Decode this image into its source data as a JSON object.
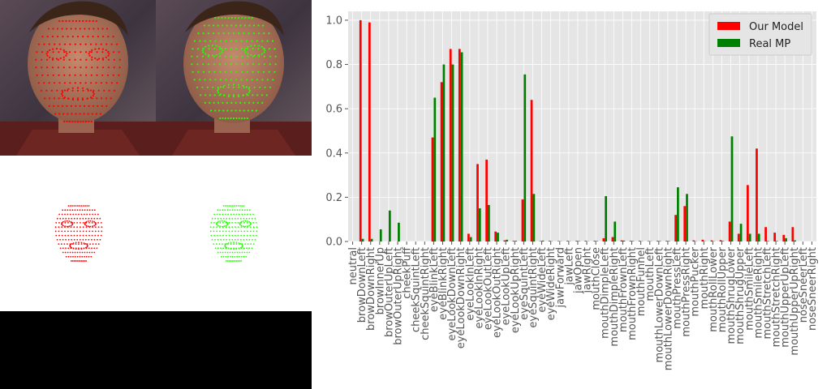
{
  "colors": {
    "our_model": "#ff0000",
    "real_mp": "#008000",
    "plot_background": "#e5e5e5",
    "grid": "#ffffff",
    "tick_text": "#555555"
  },
  "images": {
    "left_photo": "face-photo-with-red-landmarks",
    "right_photo": "face-photo-with-green-landmarks",
    "left_mesh": "red-landmark-mesh",
    "right_mesh": "green-landmark-mesh"
  },
  "chart_data": {
    "type": "bar",
    "title": "",
    "xlabel": "",
    "ylabel": "",
    "ylim": [
      0,
      1.04
    ],
    "yticks": [
      "0.0",
      "0.2",
      "0.4",
      "0.6",
      "0.8",
      "1.0"
    ],
    "grid": true,
    "legend_position": "top-right",
    "categories": [
      "neutral",
      "browDownLeft",
      "browDownRight",
      "browInnerUp",
      "browOuterUpLeft",
      "browOuterUpRight",
      "cheekPuff",
      "cheekSquintLeft",
      "cheekSquintRight",
      "eyeBlinkLeft",
      "eyeBlinkRight",
      "eyeLookDownLeft",
      "eyeLookDownRight",
      "eyeLookInLeft",
      "eyeLookInRight",
      "eyeLookOutLeft",
      "eyeLookOutRight",
      "eyeLookUpLeft",
      "eyeLookUpRight",
      "eyeSquintLeft",
      "eyeSquintRight",
      "eyeWideLeft",
      "eyeWideRight",
      "jawForward",
      "jawLeft",
      "jawOpen",
      "jawRight",
      "mouthClose",
      "mouthDimpleLeft",
      "mouthDimpleRight",
      "mouthFrownLeft",
      "mouthFrownRight",
      "mouthFunnel",
      "mouthLeft",
      "mouthLowerDownLeft",
      "mouthLowerDownRight",
      "mouthPressLeft",
      "mouthPressRight",
      "mouthPucker",
      "mouthRight",
      "mouthRollLower",
      "mouthRollUpper",
      "mouthShrugLower",
      "mouthShrugUpper",
      "mouthSmileLeft",
      "mouthSmileRight",
      "mouthStretchLeft",
      "mouthStretchRight",
      "mouthUpperUpLeft",
      "mouthUpperUpRight",
      "noseSneerLeft",
      "noseSneerRight"
    ],
    "series": [
      {
        "name": "Our Model",
        "values": [
          0.0,
          1.0,
          0.99,
          0.0,
          0.0,
          0.0,
          0.0,
          0.0,
          0.0,
          0.47,
          0.72,
          0.87,
          0.87,
          0.035,
          0.35,
          0.37,
          0.045,
          0.005,
          0.003,
          0.19,
          0.64,
          0.002,
          0.003,
          0.002,
          0.003,
          0.003,
          0.003,
          0.003,
          0.015,
          0.02,
          0.005,
          0.003,
          0.003,
          0.002,
          0.003,
          0.003,
          0.12,
          0.16,
          0.005,
          0.008,
          0.005,
          0.006,
          0.09,
          0.035,
          0.255,
          0.42,
          0.065,
          0.04,
          0.03,
          0.065,
          0.0,
          0.0
        ]
      },
      {
        "name": "Real MP",
        "values": [
          0.0,
          0.012,
          0.012,
          0.055,
          0.14,
          0.085,
          0.0,
          0.0,
          0.0,
          0.65,
          0.8,
          0.8,
          0.855,
          0.02,
          0.15,
          0.165,
          0.04,
          0.008,
          0.003,
          0.755,
          0.215,
          0.004,
          0.001,
          0.001,
          0.001,
          0.002,
          0.001,
          0.002,
          0.205,
          0.09,
          0.004,
          0.002,
          0.001,
          0.001,
          0.002,
          0.002,
          0.245,
          0.215,
          0.001,
          0.001,
          0.001,
          0.002,
          0.475,
          0.08,
          0.035,
          0.035,
          0.002,
          0.002,
          0.015,
          0.005,
          0.0,
          0.0
        ]
      }
    ]
  }
}
